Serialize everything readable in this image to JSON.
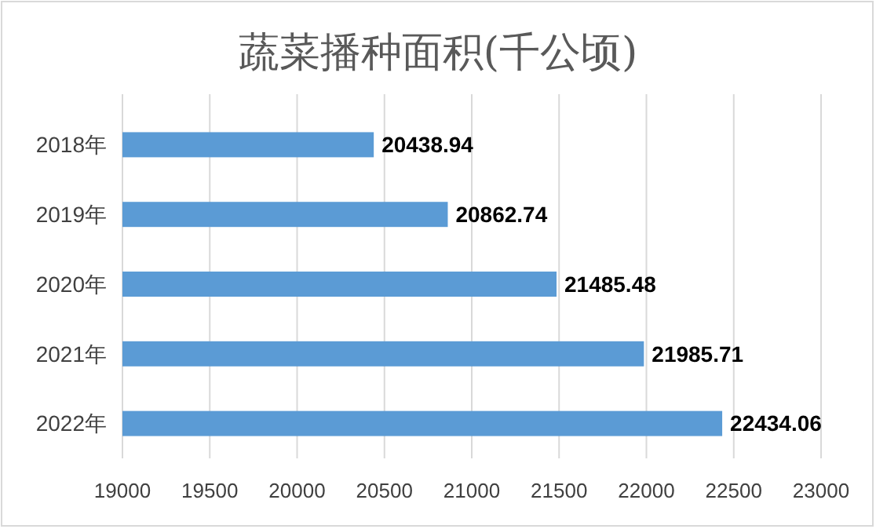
{
  "chart_data": {
    "type": "bar",
    "orientation": "horizontal",
    "title": "蔬菜播种面积(千公顷)",
    "categories": [
      "2018年",
      "2019年",
      "2020年",
      "2021年",
      "2022年"
    ],
    "values": [
      20438.94,
      20862.74,
      21485.48,
      21985.71,
      22434.06
    ],
    "color": "#5b9bd5",
    "xlim": [
      19000,
      23000
    ],
    "xticks": [
      19000,
      19500,
      20000,
      20500,
      21000,
      21500,
      22000,
      22500,
      23000
    ],
    "grid": "x",
    "data_labels": true
  }
}
